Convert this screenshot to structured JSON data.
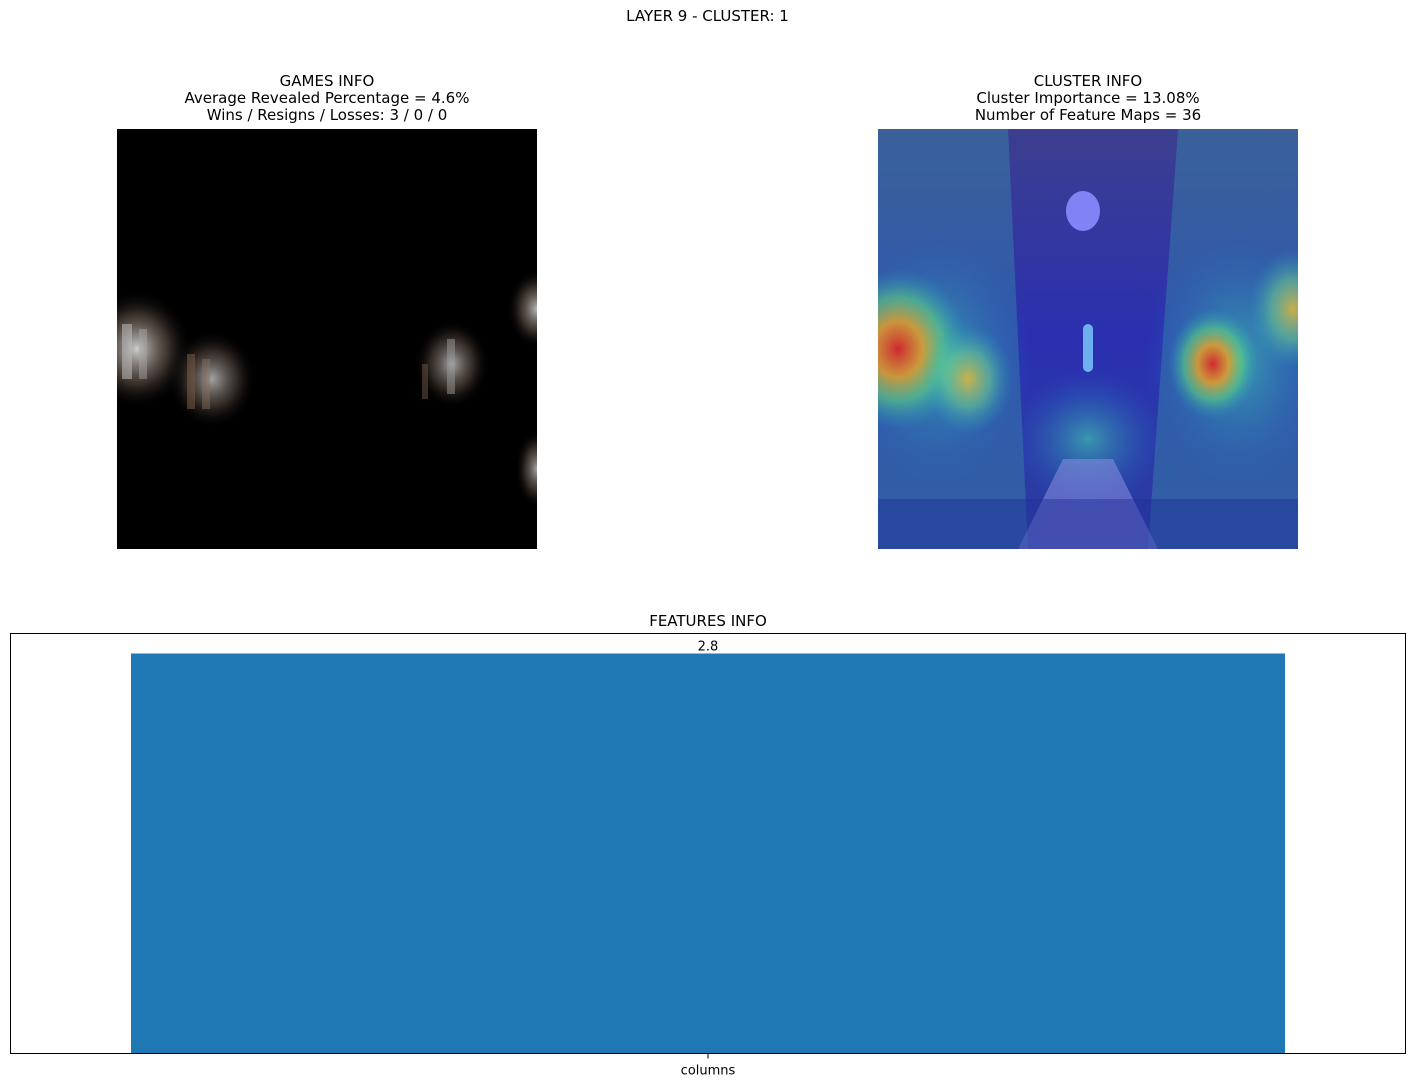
{
  "suptitle": "LAYER 9 - CLUSTER: 1",
  "games_info": {
    "title": "GAMES INFO",
    "line1": "Average Revealed Percentage = 4.6%",
    "line2": "Wins / Resigns / Losses: 3 / 0 / 0"
  },
  "cluster_info": {
    "title": "CLUSTER INFO",
    "line1": "Cluster Importance = 13.08%",
    "line2": "Number of Feature Maps = 36"
  },
  "chart_data": {
    "type": "bar",
    "title": "FEATURES INFO",
    "categories": [
      "columns"
    ],
    "values": [
      2.8
    ],
    "data_labels": [
      "2.8"
    ],
    "ylim": [
      0,
      2.94
    ],
    "bar_color": "#1f77b4",
    "grid": false,
    "xlabel": "",
    "ylabel": ""
  }
}
